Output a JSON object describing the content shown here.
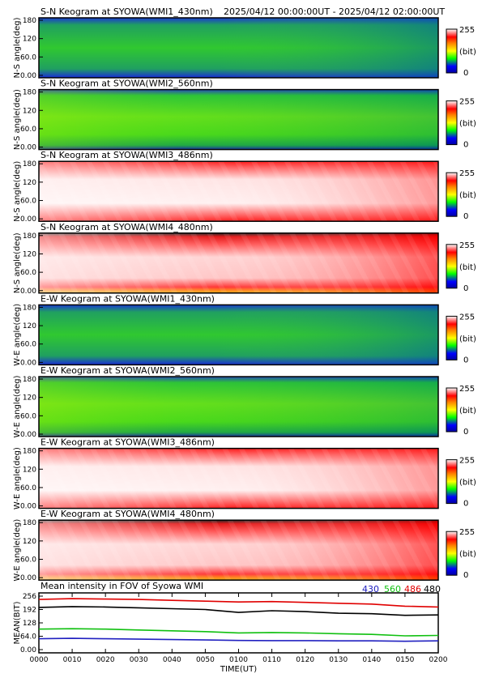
{
  "header": {
    "date_range": "2025/04/12 00:00:00UT - 2025/04/12 02:00:00UT"
  },
  "colorbar": {
    "max_label": "255",
    "unit_label": "(bit)",
    "min_label": "0"
  },
  "chart_data": [
    {
      "type": "heatmap",
      "title": "S-N Keogram at SYOWA(WMI1_430nm)",
      "ylabel": "N-S angle(deg)",
      "yticks": [
        "180",
        "120",
        "60.0",
        "0.00"
      ],
      "ylim": [
        0,
        180
      ],
      "palette": "green"
    },
    {
      "type": "heatmap",
      "title": "S-N Keogram at SYOWA(WMI2_560nm)",
      "ylabel": "N-S angle(deg)",
      "yticks": [
        "180",
        "120",
        "60.0",
        "0.00"
      ],
      "ylim": [
        0,
        180
      ],
      "palette": "green-bright"
    },
    {
      "type": "heatmap",
      "title": "S-N Keogram at SYOWA(WMI3_486nm)",
      "ylabel": "N-S angle(deg)",
      "yticks": [
        "180",
        "120",
        "60.0",
        "0.00"
      ],
      "ylim": [
        0,
        180
      ],
      "palette": "red"
    },
    {
      "type": "heatmap",
      "title": "S-N Keogram at SYOWA(WMI4_480nm)",
      "ylabel": "N-S angle(deg)",
      "yticks": [
        "180",
        "120",
        "60.0",
        "0.00"
      ],
      "ylim": [
        0,
        180
      ],
      "palette": "red-strong"
    },
    {
      "type": "heatmap",
      "title": "E-W Keogram at SYOWA(WMI1_430nm)",
      "ylabel": "W-E angle(deg)",
      "yticks": [
        "180",
        "120",
        "60.0",
        "0.00"
      ],
      "ylim": [
        0,
        180
      ],
      "palette": "green"
    },
    {
      "type": "heatmap",
      "title": "E-W Keogram at SYOWA(WMI2_560nm)",
      "ylabel": "W-E angle(deg)",
      "yticks": [
        "180",
        "120",
        "60.0",
        "0.00"
      ],
      "ylim": [
        0,
        180
      ],
      "palette": "green-bright"
    },
    {
      "type": "heatmap",
      "title": "E-W Keogram at SYOWA(WMI3_486nm)",
      "ylabel": "W-E angle(deg)",
      "yticks": [
        "180",
        "120",
        "60.0",
        "0.00"
      ],
      "ylim": [
        0,
        180
      ],
      "palette": "red"
    },
    {
      "type": "heatmap",
      "title": "E-W Keogram at SYOWA(WMI4_480nm)",
      "ylabel": "W-E angle(deg)",
      "yticks": [
        "180",
        "120",
        "60.0",
        "0.00"
      ],
      "ylim": [
        0,
        180
      ],
      "palette": "red-strong"
    },
    {
      "type": "line",
      "title": "Mean intensity in FOV of Syowa WMI",
      "ylabel": "MEAN(BIT)",
      "xlabel": "TIME(UT)",
      "ylim": [
        0,
        256
      ],
      "yticks": [
        "256",
        "192",
        "128",
        "64.0",
        "0.00"
      ],
      "x_tick_labels": [
        "0000",
        "0010",
        "0020",
        "0030",
        "0040",
        "0050",
        "0100",
        "0110",
        "0120",
        "0130",
        "0140",
        "0150",
        "0200"
      ],
      "x_minutes": [
        0,
        10,
        20,
        30,
        40,
        50,
        60,
        70,
        80,
        90,
        100,
        110,
        120
      ],
      "series": [
        {
          "name": "430",
          "color": "#2020c0",
          "values": [
            52,
            54,
            52,
            50,
            48,
            46,
            44,
            43,
            43,
            42,
            42,
            40,
            42
          ]
        },
        {
          "name": "560",
          "color": "#10c010",
          "values": [
            98,
            100,
            98,
            94,
            90,
            86,
            80,
            82,
            80,
            76,
            73,
            66,
            68
          ]
        },
        {
          "name": "486",
          "color": "#e00000",
          "values": [
            240,
            244,
            242,
            240,
            236,
            232,
            228,
            230,
            226,
            222,
            218,
            208,
            204
          ]
        },
        {
          "name": "480",
          "color": "#000000",
          "values": [
            202,
            206,
            204,
            200,
            196,
            192,
            178,
            186,
            182,
            174,
            172,
            164,
            166
          ]
        }
      ]
    }
  ]
}
